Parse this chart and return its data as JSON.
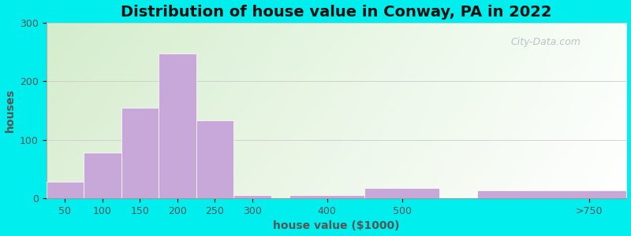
{
  "title": "Distribution of house value in Conway, PA in 2022",
  "xlabel": "house value ($1000)",
  "ylabel": "houses",
  "bar_lefts": [
    25,
    75,
    125,
    175,
    225,
    275,
    350,
    450,
    600
  ],
  "bar_widths": [
    50,
    50,
    50,
    50,
    50,
    50,
    100,
    100,
    200
  ],
  "bar_values": [
    28,
    78,
    155,
    248,
    133,
    5,
    5,
    18,
    13
  ],
  "xtick_positions": [
    50,
    100,
    150,
    200,
    250,
    300,
    400,
    500,
    750
  ],
  "xtick_labels": [
    "50",
    "100",
    "150",
    "200",
    "250",
    "300",
    "400",
    "500",
    ">750"
  ],
  "bar_color": "#c8a8d8",
  "bar_edgecolor": "#ffffff",
  "background_color": "#00eeee",
  "ylim": [
    0,
    300
  ],
  "xlim": [
    25,
    800
  ],
  "yticks": [
    0,
    100,
    200,
    300
  ],
  "title_fontsize": 14,
  "axis_label_fontsize": 10,
  "tick_fontsize": 9,
  "title_color": "#111111",
  "tick_color": "#555555",
  "watermark_text": "City-Data.com",
  "watermark_color": "#b0b8c0"
}
